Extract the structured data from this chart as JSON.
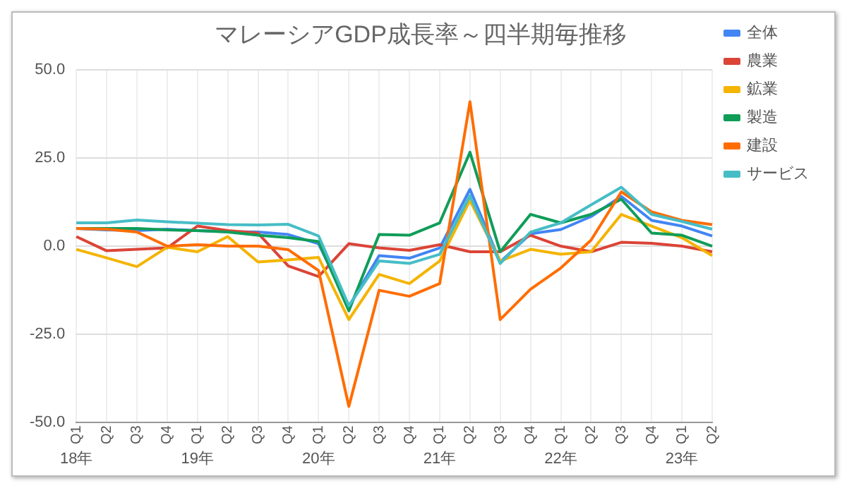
{
  "chart_data": {
    "type": "line",
    "title": "マレーシアGDP成長率～四半期毎推移",
    "categories": [
      "Q1",
      "Q2",
      "Q3",
      "Q4",
      "Q1",
      "Q2",
      "Q3",
      "Q4",
      "Q1",
      "Q2",
      "Q3",
      "Q4",
      "Q1",
      "Q2",
      "Q3",
      "Q4",
      "Q1",
      "Q2",
      "Q3",
      "Q4",
      "Q1",
      "Q2"
    ],
    "annotations": [
      "18年",
      "19年",
      "20年",
      "21年",
      "22年",
      "23年"
    ],
    "series": [
      {
        "name": "全体",
        "color": "#4285f4",
        "values": [
          5.0,
          4.6,
          4.4,
          4.8,
          4.4,
          4.1,
          4.0,
          3.3,
          0.7,
          -17.1,
          -2.7,
          -3.4,
          -0.5,
          16.1,
          -4.5,
          3.5,
          4.7,
          8.4,
          14.1,
          7.3,
          5.7,
          2.9
        ]
      },
      {
        "name": "農業",
        "color": "#db4437",
        "values": [
          2.7,
          -1.3,
          -0.9,
          -0.5,
          5.7,
          4.4,
          3.7,
          -5.6,
          -8.6,
          0.7,
          -0.5,
          -1.2,
          0.4,
          -1.6,
          -1.6,
          3.1,
          0,
          -1.6,
          1.1,
          0.8,
          0,
          -1.6
        ]
      },
      {
        "name": "鉱業",
        "color": "#f4b400",
        "values": [
          -0.9,
          -3.3,
          -5.8,
          -0.3,
          -1.6,
          2.7,
          -4.5,
          -3.9,
          -3.2,
          -20.8,
          -8.0,
          -10.6,
          -4.2,
          13.0,
          -4.2,
          -0.9,
          -2.3,
          -1.6,
          9.0,
          5.7,
          2.4,
          -2.7
        ]
      },
      {
        "name": "製造",
        "color": "#0f9d58",
        "values": [
          5.0,
          5.0,
          5.0,
          4.6,
          4.4,
          4.0,
          3.1,
          2.4,
          1.3,
          -18.3,
          3.3,
          3.1,
          6.6,
          26.6,
          -1.6,
          9.0,
          6.6,
          9.0,
          13.3,
          3.7,
          3.1,
          0
        ]
      },
      {
        "name": "建設",
        "color": "#ff6d01",
        "values": [
          5.0,
          4.8,
          4.0,
          0,
          0.4,
          0,
          0,
          -1.0,
          -6.9,
          -45.4,
          -12.5,
          -14.2,
          -10.6,
          40.9,
          -20.8,
          -12.2,
          -6.2,
          1.7,
          15.4,
          9.7,
          7.3,
          6.1
        ]
      },
      {
        "name": "サービス",
        "color": "#46bdc6",
        "values": [
          6.6,
          6.6,
          7.4,
          6.9,
          6.5,
          6.1,
          6.0,
          6.2,
          2.9,
          -16.9,
          -4.2,
          -4.9,
          -2.3,
          14.3,
          -4.9,
          4.0,
          6.6,
          11.7,
          16.7,
          9.0,
          7.0,
          4.8
        ]
      }
    ],
    "ylim": [
      -50,
      50
    ],
    "yticks": [
      {
        "value": -50,
        "label": "-50.0"
      },
      {
        "value": -25,
        "label": "-25.0"
      },
      {
        "value": 0,
        "label": "0.0"
      },
      {
        "value": 25,
        "label": "25.0"
      },
      {
        "value": 50,
        "label": "50.0"
      }
    ],
    "grid": true,
    "legend": "right",
    "marker": "none",
    "line_style": "solid"
  }
}
